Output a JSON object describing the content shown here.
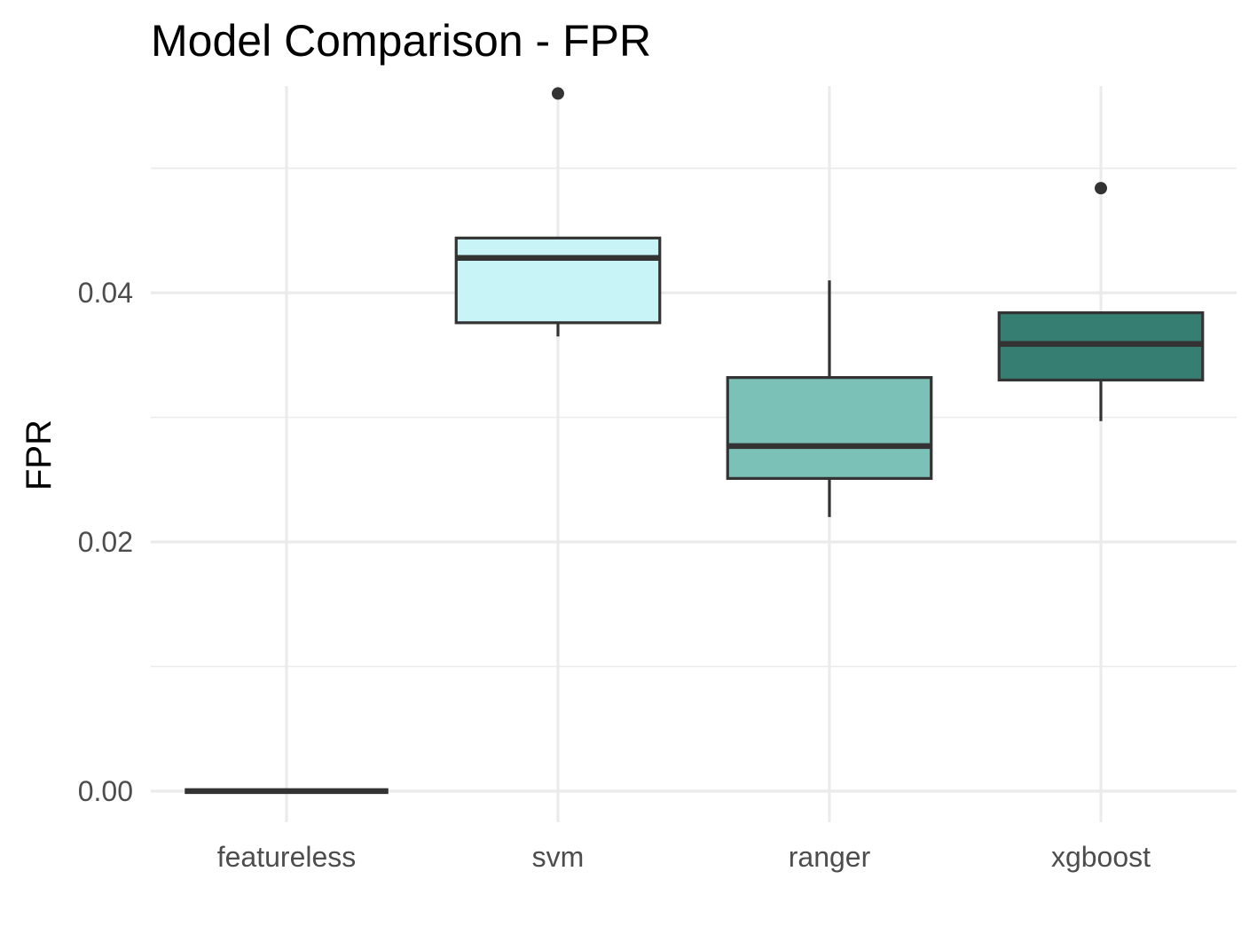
{
  "chart_data": {
    "type": "boxplot",
    "title": "Model Comparison - FPR",
    "xlabel": "",
    "ylabel": "FPR",
    "ylim": [
      -0.0025,
      0.0566
    ],
    "yticks": [
      0.0,
      0.02,
      0.04
    ],
    "ytick_labels": [
      "0.00",
      "0.02",
      "0.04"
    ],
    "grid": true,
    "legend": "none",
    "categories": [
      "featureless",
      "svm",
      "ranger",
      "xgboost"
    ],
    "series": [
      {
        "category": "featureless",
        "whisker_low": 0.0,
        "q1": 0.0,
        "median": 0.0,
        "q3": 0.0,
        "whisker_high": 0.0,
        "outliers": [],
        "fill": "#ffffff"
      },
      {
        "category": "svm",
        "whisker_low": 0.0365,
        "q1": 0.0376,
        "median": 0.0428,
        "q3": 0.0444,
        "whisker_high": 0.0444,
        "outliers": [
          0.056
        ],
        "fill": "#c9f4f7"
      },
      {
        "category": "ranger",
        "whisker_low": 0.022,
        "q1": 0.0251,
        "median": 0.0277,
        "q3": 0.0332,
        "whisker_high": 0.041,
        "outliers": [],
        "fill": "#7cc1b8"
      },
      {
        "category": "xgboost",
        "whisker_low": 0.0297,
        "q1": 0.033,
        "median": 0.0359,
        "q3": 0.0384,
        "whisker_high": 0.0384,
        "outliers": [
          0.0484
        ],
        "fill": "#377e72"
      }
    ],
    "colors": {
      "box_stroke": "#333333",
      "grid": "#ebebeb",
      "tick_text": "#4d4d4d",
      "title_text": "#000000"
    }
  }
}
